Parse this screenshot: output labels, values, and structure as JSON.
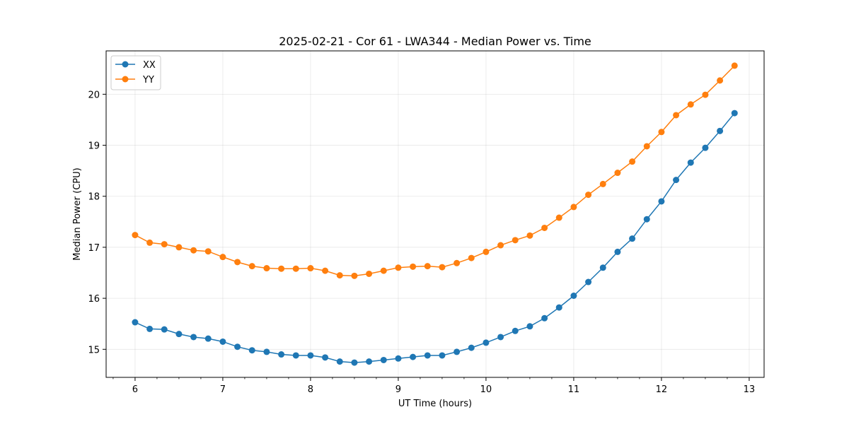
{
  "chart_data": {
    "type": "line",
    "title": "2025-02-21 - Cor 61 - LWA344 - Median Power vs. Time",
    "xlabel": "UT Time (hours)",
    "ylabel": "Median Power (CPU)",
    "xlim": [
      5.67,
      13.17
    ],
    "ylim": [
      14.45,
      20.85
    ],
    "xticks": [
      6,
      7,
      8,
      9,
      10,
      11,
      12,
      13
    ],
    "yticks": [
      15,
      16,
      17,
      18,
      19,
      20
    ],
    "grid": true,
    "legend_position": "top-left",
    "x": [
      6.0,
      6.1667,
      6.3333,
      6.5,
      6.6667,
      6.8333,
      7.0,
      7.1667,
      7.3333,
      7.5,
      7.6667,
      7.8333,
      8.0,
      8.1667,
      8.3333,
      8.5,
      8.6667,
      8.8333,
      9.0,
      9.1667,
      9.3333,
      9.5,
      9.6667,
      9.8333,
      10.0,
      10.1667,
      10.3333,
      10.5,
      10.6667,
      10.8333,
      11.0,
      11.1667,
      11.3333,
      11.5,
      11.6667,
      11.8333,
      12.0,
      12.1667,
      12.3333,
      12.5,
      12.6667,
      12.8333
    ],
    "series": [
      {
        "name": "XX",
        "color": "#1f77b4",
        "values": [
          15.53,
          15.4,
          15.39,
          15.3,
          15.24,
          15.21,
          15.15,
          15.05,
          14.98,
          14.95,
          14.9,
          14.88,
          14.88,
          14.84,
          14.76,
          14.74,
          14.76,
          14.79,
          14.82,
          14.85,
          14.88,
          14.88,
          14.95,
          15.03,
          15.13,
          15.24,
          15.36,
          15.45,
          15.61,
          15.82,
          16.05,
          16.32,
          16.6,
          16.91,
          17.17,
          17.55,
          17.9,
          18.32,
          18.66,
          18.95,
          19.28,
          19.63
        ]
      },
      {
        "name": "YY",
        "color": "#ff7f0e",
        "values": [
          17.24,
          17.09,
          17.06,
          17.0,
          16.94,
          16.92,
          16.81,
          16.71,
          16.63,
          16.59,
          16.58,
          16.58,
          16.59,
          16.54,
          16.45,
          16.44,
          16.48,
          16.54,
          16.6,
          16.62,
          16.63,
          16.61,
          16.69,
          16.79,
          16.91,
          17.04,
          17.14,
          17.23,
          17.38,
          17.58,
          17.79,
          18.03,
          18.24,
          18.46,
          18.68,
          18.98,
          19.26,
          19.59,
          19.8,
          19.99,
          20.27,
          20.56
        ]
      }
    ]
  }
}
